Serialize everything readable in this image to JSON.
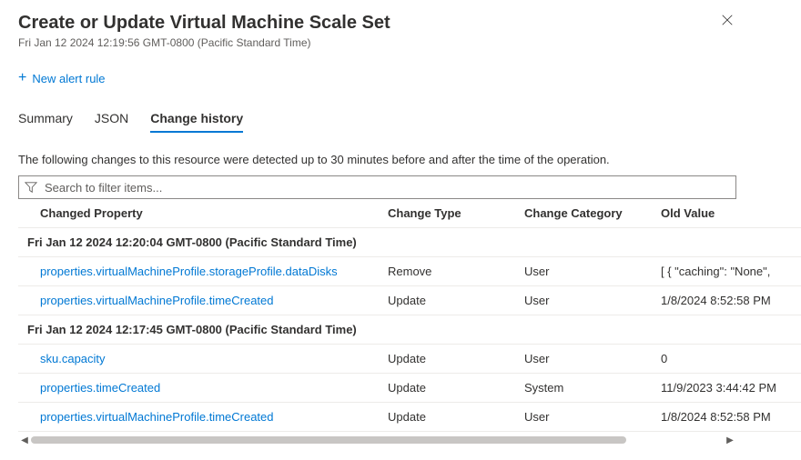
{
  "header": {
    "title": "Create or Update Virtual Machine Scale Set",
    "timestamp": "Fri Jan 12 2024 12:19:56 GMT-0800 (Pacific Standard Time)"
  },
  "toolbar": {
    "new_alert_label": "New alert rule"
  },
  "tabs": {
    "summary": "Summary",
    "json": "JSON",
    "change_history": "Change history"
  },
  "description": "The following changes to this resource were detected up to 30 minutes before and after the time of the operation.",
  "search": {
    "placeholder": "Search to filter items..."
  },
  "columns": {
    "changed_property": "Changed Property",
    "change_type": "Change Type",
    "change_category": "Change Category",
    "old_value": "Old Value"
  },
  "groups": [
    {
      "label": "Fri Jan 12 2024 12:20:04 GMT-0800 (Pacific Standard Time)",
      "rows": [
        {
          "property": "properties.virtualMachineProfile.storageProfile.dataDisks",
          "type": "Remove",
          "category": "User",
          "old_value": "[ { \"caching\": \"None\","
        },
        {
          "property": "properties.virtualMachineProfile.timeCreated",
          "type": "Update",
          "category": "User",
          "old_value": "1/8/2024 8:52:58 PM"
        }
      ]
    },
    {
      "label": "Fri Jan 12 2024 12:17:45 GMT-0800 (Pacific Standard Time)",
      "rows": [
        {
          "property": "sku.capacity",
          "type": "Update",
          "category": "User",
          "old_value": "0"
        },
        {
          "property": "properties.timeCreated",
          "type": "Update",
          "category": "System",
          "old_value": "11/9/2023 3:44:42 PM"
        },
        {
          "property": "properties.virtualMachineProfile.timeCreated",
          "type": "Update",
          "category": "User",
          "old_value": "1/8/2024 8:52:58 PM"
        }
      ]
    }
  ],
  "colors": {
    "link": "#0078d4",
    "text": "#323130",
    "muted": "#605e5c",
    "border": "#edebe9",
    "scrollbar_thumb": "#c8c6c4"
  }
}
